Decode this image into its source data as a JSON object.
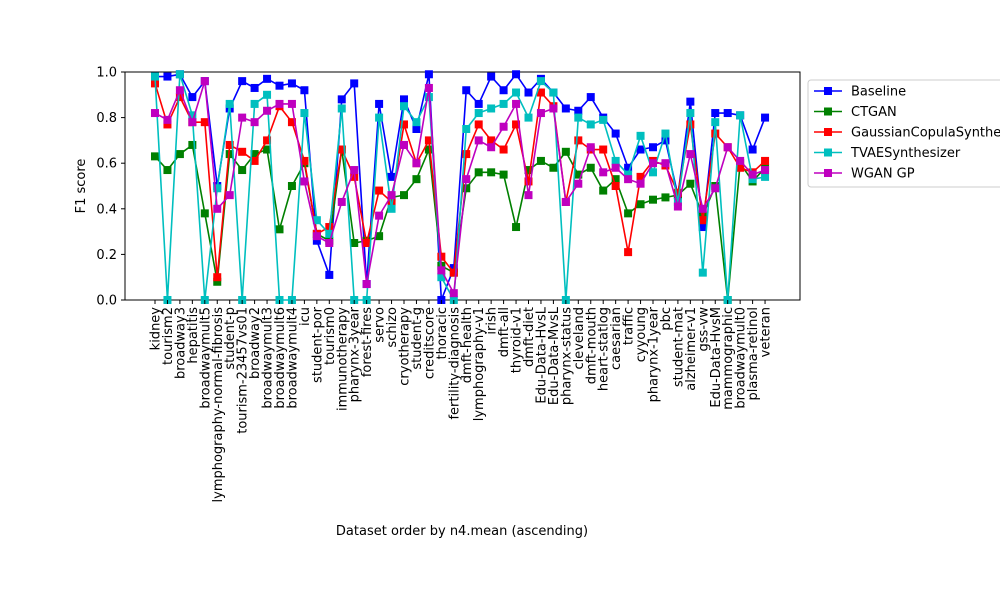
{
  "chart_data": {
    "type": "line",
    "xlabel": "Dataset order by n4.mean (ascending)",
    "ylabel": "F1 score",
    "ylim": [
      0.0,
      1.0
    ],
    "yticks": [
      "0.0",
      "0.2",
      "0.4",
      "0.6",
      "0.8",
      "1.0"
    ],
    "grid": false,
    "legend_position": "outside-right-top",
    "categories": [
      "kidney",
      "tourism2",
      "broadway3",
      "hepatitis",
      "broadwaymult5",
      "lymphography-normal-fibrosis",
      "student-p",
      "tourism-23457vs01",
      "broadway2",
      "broadwaymult3",
      "broadwaymult6",
      "broadwaymult4",
      "icu",
      "student-por",
      "tourism0",
      "immunotherapy",
      "pharynx-3year",
      "forest-fires",
      "servo",
      "schizo",
      "cryotherapy",
      "student-g",
      "creditscore",
      "thoracic",
      "fertility-diagnosis",
      "dmft-health",
      "lymphography-v1",
      "irish",
      "dmft-all",
      "thyroid-v1",
      "dmft-diet",
      "Edu-Data-HvsL",
      "Edu-Data-MvsL",
      "pharynx-status",
      "cleveland",
      "dmft-mouth",
      "heart-statlog",
      "caesarian",
      "traffic",
      "cyyoung",
      "pharynx-1year",
      "pbc",
      "student-mat",
      "alzheimer-v1",
      "gss-vw",
      "Edu-Data-HvsM",
      "mammographic",
      "broadwaymult0",
      "plasma-retinol",
      "veteran"
    ],
    "series": [
      {
        "name": "Baseline",
        "color": "#0000ff",
        "values": [
          0.98,
          0.98,
          0.99,
          0.89,
          0.96,
          0.5,
          0.84,
          0.96,
          0.93,
          0.97,
          0.94,
          0.95,
          0.92,
          0.26,
          0.11,
          0.88,
          0.95,
          0.07,
          0.86,
          0.54,
          0.88,
          0.75,
          0.99,
          0.0,
          0.14,
          0.92,
          0.86,
          0.98,
          0.92,
          0.99,
          0.91,
          0.97,
          0.91,
          0.84,
          0.83,
          0.89,
          0.8,
          0.73,
          0.58,
          0.66,
          0.67,
          0.7,
          0.46,
          0.87,
          0.32,
          0.82,
          0.82,
          0.81,
          0.66,
          0.8
        ]
      },
      {
        "name": "CTGAN",
        "color": "#008000",
        "values": [
          0.63,
          0.57,
          0.64,
          0.68,
          0.38,
          0.08,
          0.64,
          0.57,
          0.64,
          0.66,
          0.31,
          0.5,
          0.6,
          0.29,
          0.26,
          0.66,
          0.25,
          0.26,
          0.28,
          0.45,
          0.46,
          0.53,
          0.66,
          0.15,
          0.12,
          0.49,
          0.56,
          0.56,
          0.55,
          0.32,
          0.57,
          0.61,
          0.58,
          0.65,
          0.55,
          0.58,
          0.48,
          0.53,
          0.38,
          0.42,
          0.44,
          0.45,
          0.46,
          0.51,
          0.37,
          0.5,
          0.0,
          0.6,
          0.52,
          0.58
        ]
      },
      {
        "name": "GaussianCopulaSynthesizer",
        "color": "#ff0000",
        "values": [
          0.95,
          0.77,
          0.89,
          0.78,
          0.78,
          0.1,
          0.68,
          0.65,
          0.61,
          0.7,
          0.85,
          0.78,
          0.61,
          0.29,
          0.32,
          0.66,
          0.54,
          0.25,
          0.48,
          0.43,
          0.77,
          0.6,
          0.7,
          0.19,
          0.12,
          0.64,
          0.77,
          0.7,
          0.66,
          0.77,
          0.52,
          0.91,
          0.85,
          0.43,
          0.7,
          0.66,
          0.66,
          0.5,
          0.21,
          0.54,
          0.61,
          0.59,
          0.47,
          0.77,
          0.35,
          0.73,
          0.67,
          0.58,
          0.56,
          0.61
        ]
      },
      {
        "name": "TVAESynthesizer",
        "color": "#00bfbf",
        "values": [
          0.98,
          0.0,
          0.99,
          0.81,
          0.0,
          0.49,
          0.86,
          0.0,
          0.86,
          0.9,
          0.0,
          0.0,
          0.82,
          0.35,
          0.29,
          0.84,
          0.0,
          0.0,
          0.8,
          0.4,
          0.85,
          0.78,
          0.89,
          0.1,
          0.0,
          0.75,
          0.82,
          0.84,
          0.86,
          0.91,
          0.8,
          0.96,
          0.91,
          0.0,
          0.8,
          0.77,
          0.79,
          0.61,
          0.55,
          0.72,
          0.56,
          0.73,
          0.43,
          0.82,
          0.12,
          0.78,
          0.0,
          0.81,
          0.53,
          0.54
        ]
      },
      {
        "name": "WGAN GP",
        "color": "#bf00bf",
        "values": [
          0.82,
          0.79,
          0.92,
          0.78,
          0.96,
          0.4,
          0.46,
          0.8,
          0.78,
          0.83,
          0.86,
          0.86,
          0.52,
          0.28,
          0.25,
          0.43,
          0.57,
          0.07,
          0.37,
          0.46,
          0.68,
          0.6,
          0.93,
          0.13,
          0.03,
          0.53,
          0.7,
          0.67,
          0.76,
          0.86,
          0.46,
          0.82,
          0.84,
          0.43,
          0.51,
          0.67,
          0.56,
          0.58,
          0.53,
          0.51,
          0.6,
          0.6,
          0.41,
          0.64,
          0.4,
          0.49,
          0.67,
          0.61,
          0.55,
          0.57
        ]
      }
    ]
  }
}
